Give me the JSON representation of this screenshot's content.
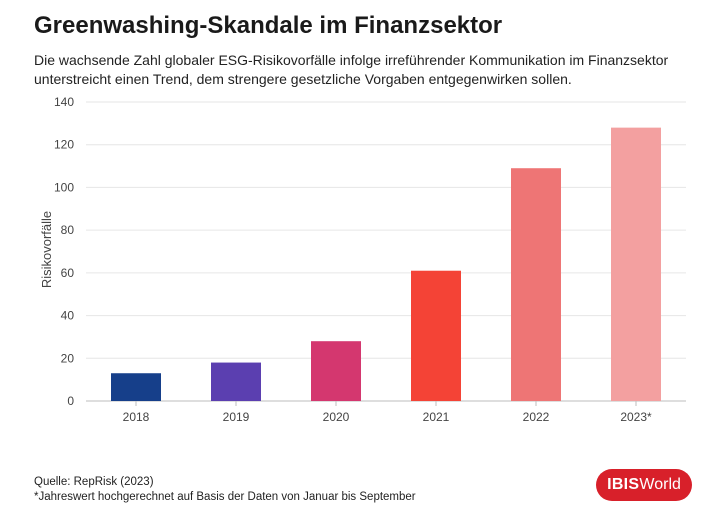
{
  "title": "Greenwashing-Skandale im Finanzsektor",
  "subtitle": "Die wachsende Zahl globaler ESG-Risikovorfälle infolge irreführender Kommunikation im Finanzsektor unterstreicht einen Trend, dem strengere gesetzliche Vorgaben entgegenwirken sollen.",
  "footer": {
    "source": "Quelle: RepRisk (2023)",
    "note": "*Jahreswert hochgerechnet auf Basis der Daten von Januar bis September"
  },
  "logo": {
    "ibis": "IBIS",
    "world": "World",
    "color": "#d8202a"
  },
  "chart_data": {
    "type": "bar",
    "categories": [
      "2018",
      "2019",
      "2020",
      "2021",
      "2022",
      "2023*"
    ],
    "values": [
      13,
      18,
      28,
      61,
      109,
      128
    ],
    "colors": [
      "#163f8a",
      "#5b3fb0",
      "#d4376f",
      "#f44336",
      "#ee7575",
      "#f3a0a0"
    ],
    "ylabel": "Risikovorfälle",
    "xlabel": "",
    "ylim": [
      0,
      140
    ],
    "yticks": [
      0,
      20,
      40,
      60,
      80,
      100,
      120,
      140
    ],
    "grid": true
  }
}
